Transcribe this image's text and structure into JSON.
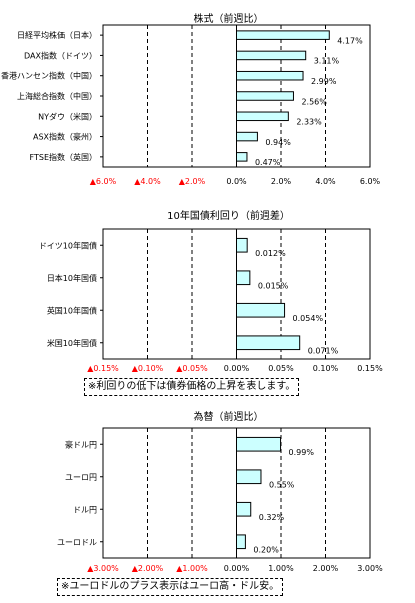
{
  "chart_data": [
    {
      "type": "bar",
      "title": "株式（前週比）",
      "categories": [
        "日経平均株価（日本）",
        "DAX指数（ドイツ）",
        "香港ハンセン指数（中国）",
        "上海総合指数（中国）",
        "NYダウ（米国）",
        "ASX指数（豪州）",
        "FTSE指数（英国）"
      ],
      "values": [
        4.17,
        3.11,
        2.99,
        2.56,
        2.33,
        0.94,
        0.47
      ],
      "value_labels": [
        "4.17%",
        "3.11%",
        "2.99%",
        "2.56%",
        "2.33%",
        "0.94%",
        "0.47%"
      ],
      "xlim": [
        -6,
        6
      ],
      "ticks": [
        -6,
        -4,
        -2,
        0,
        2,
        4,
        6
      ],
      "tick_labels": [
        "▲6.0%",
        "▲4.0%",
        "▲2.0%",
        "0.0%",
        "2.0%",
        "4.0%",
        "6.0%"
      ],
      "orientation": "horizontal",
      "grid": "vertical dashed",
      "note": ""
    },
    {
      "type": "bar",
      "title": "10年国債利回り（前週差）",
      "categories": [
        "ドイツ10年国債",
        "日本10年国債",
        "英国10年国債",
        "米国10年国債"
      ],
      "values": [
        0.012,
        0.015,
        0.054,
        0.071
      ],
      "value_labels": [
        "0.012%",
        "0.015%",
        "0.054%",
        "0.071%"
      ],
      "xlim": [
        -0.15,
        0.15
      ],
      "ticks": [
        -0.15,
        -0.1,
        -0.05,
        0,
        0.05,
        0.1,
        0.15
      ],
      "tick_labels": [
        "▲0.15%",
        "▲0.10%",
        "▲0.05%",
        "0.00%",
        "0.05%",
        "0.10%",
        "0.15%"
      ],
      "orientation": "horizontal",
      "grid": "vertical dashed",
      "note": "※利回りの低下は債券価格の上昇を表します。"
    },
    {
      "type": "bar",
      "title": "為替（前週比）",
      "categories": [
        "豪ドル円",
        "ユーロ円",
        "ドル円",
        "ユーロドル"
      ],
      "values": [
        0.99,
        0.55,
        0.32,
        0.2
      ],
      "value_labels": [
        "0.99%",
        "0.55%",
        "0.32%",
        "0.20%"
      ],
      "xlim": [
        -3,
        3
      ],
      "ticks": [
        -3,
        -2,
        -1,
        0,
        1,
        2,
        3
      ],
      "tick_labels": [
        "▲3.00%",
        "▲2.00%",
        "▲1.00%",
        "0.00%",
        "1.00%",
        "2.00%",
        "3.00%"
      ],
      "orientation": "horizontal",
      "grid": "vertical dashed",
      "note": "※ユーロドルのプラス表示はユーロ高・ドル安。"
    }
  ],
  "colors": {
    "bar_fill": "#ccffff",
    "bar_stroke": "#000000",
    "negative_tick": "#ff0000",
    "positive_tick": "#000000"
  }
}
